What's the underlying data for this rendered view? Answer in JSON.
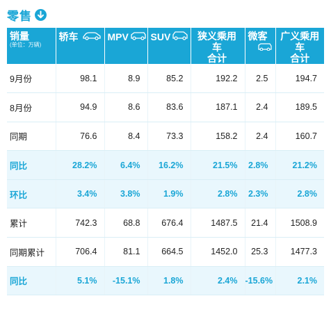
{
  "title": "零售",
  "header": {
    "first_label": "销量",
    "first_unit": "(单位：万辆)",
    "columns": [
      {
        "label": "轿车",
        "icon": "sedan-icon"
      },
      {
        "label": "MPV",
        "icon": "mpv-icon"
      },
      {
        "label": "SUV",
        "icon": "suv-icon"
      },
      {
        "label": "狭义乘用车合计",
        "line1": "狭义乘用车",
        "line2": "合计",
        "icon": "passenger-car-icon"
      },
      {
        "label": "微客",
        "icon": "minivan-icon"
      },
      {
        "label": "广义乘用车合计",
        "line1": "广义乘用车",
        "line2": "合计"
      }
    ]
  },
  "rows": [
    {
      "label": "9月份",
      "highlight": false,
      "values": [
        "98.1",
        "8.9",
        "85.2",
        "192.2",
        "2.5",
        "194.7"
      ]
    },
    {
      "label": "8月份",
      "highlight": false,
      "values": [
        "94.9",
        "8.6",
        "83.6",
        "187.1",
        "2.4",
        "189.5"
      ]
    },
    {
      "label": "同期",
      "highlight": false,
      "values": [
        "76.6",
        "8.4",
        "73.3",
        "158.2",
        "2.4",
        "160.7"
      ]
    },
    {
      "label": "同比",
      "highlight": true,
      "values": [
        "28.2%",
        "6.4%",
        "16.2%",
        "21.5%",
        "2.8%",
        "21.2%"
      ]
    },
    {
      "label": "环比",
      "highlight": true,
      "values": [
        "3.4%",
        "3.8%",
        "1.9%",
        "2.8%",
        "2.3%",
        "2.8%"
      ]
    },
    {
      "label": "累计",
      "highlight": false,
      "values": [
        "742.3",
        "68.8",
        "676.4",
        "1487.5",
        "21.4",
        "1508.9"
      ]
    },
    {
      "label": "同期累计",
      "highlight": false,
      "values": [
        "706.4",
        "81.1",
        "664.5",
        "1452.0",
        "25.3",
        "1477.3"
      ]
    },
    {
      "label": "同比",
      "highlight": true,
      "values": [
        "5.1%",
        "-15.1%",
        "1.8%",
        "2.4%",
        "-15.6%",
        "2.1%"
      ]
    }
  ],
  "colors": {
    "accent": "#1aa6d6",
    "highlight_row": "#e9f7fd"
  }
}
